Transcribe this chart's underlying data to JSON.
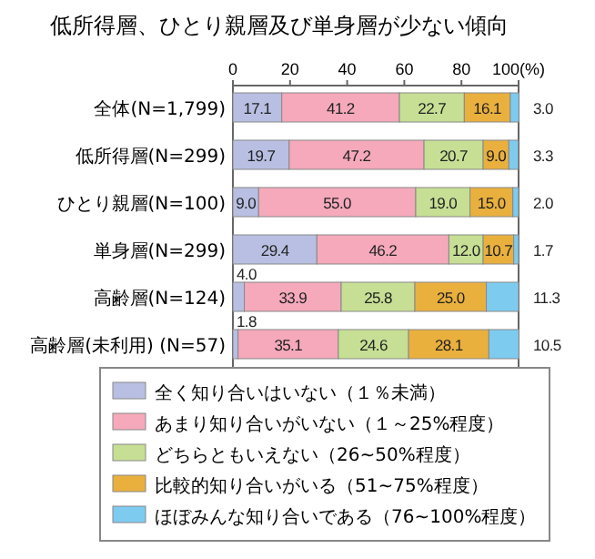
{
  "chart_data": {
    "type": "bar",
    "orientation": "horizontal",
    "stacked": true,
    "title": "低所得層、ひとり親層及び単身層が少ない傾向",
    "categories": [
      "全体(N=1,799)",
      "低所得層(N=299)",
      "ひとり親層(N=100)",
      "単身層(N=299)",
      "高齢層(N=124)",
      "高齢層(未利用) (N=57)"
    ],
    "series": [
      {
        "name": "全く知り合いはいない（１％未満）",
        "color": "#b8bfe2",
        "values": [
          17.1,
          19.7,
          9.0,
          29.4,
          4.0,
          1.8
        ],
        "value_labels": [
          "17.1",
          "19.7",
          "9.0",
          "29.4",
          "4.0",
          "1.8"
        ]
      },
      {
        "name": "あまり知り合いがいない（１～25%程度）",
        "color": "#f5a9bb",
        "values": [
          41.2,
          47.2,
          55.0,
          46.2,
          33.9,
          35.1
        ],
        "value_labels": [
          "41.2",
          "47.2",
          "55.0",
          "46.2",
          "33.9",
          "35.1"
        ]
      },
      {
        "name": "どちらともいえない（26~50%程度）",
        "color": "#c6df94",
        "values": [
          22.7,
          20.7,
          19.0,
          12.0,
          25.8,
          24.6
        ],
        "value_labels": [
          "22.7",
          "20.7",
          "19.0",
          "12.0",
          "25.8",
          "24.6"
        ]
      },
      {
        "name": "比較的知り合いがいる（51~75%程度）",
        "color": "#e9b03e",
        "values": [
          16.1,
          9.0,
          15.0,
          10.7,
          25.0,
          28.1
        ],
        "value_labels": [
          "16.1",
          "9.0",
          "15.0",
          "10.7",
          "25.0",
          "28.1"
        ]
      },
      {
        "name": "ほぼみんな知り合いである（76~100%程度）",
        "color": "#7ecbf0",
        "values": [
          3.0,
          3.3,
          2.0,
          1.7,
          11.3,
          10.5
        ],
        "value_labels": [
          "3.0",
          "3.3",
          "2.0",
          "1.7",
          "11.3",
          "10.5"
        ]
      }
    ],
    "xlim": [
      0,
      100
    ],
    "xticks": [
      0,
      20,
      40,
      60,
      80,
      {
        "value": 100,
        "label": "100(%)"
      }
    ],
    "legend": "bottom",
    "grid": false
  }
}
